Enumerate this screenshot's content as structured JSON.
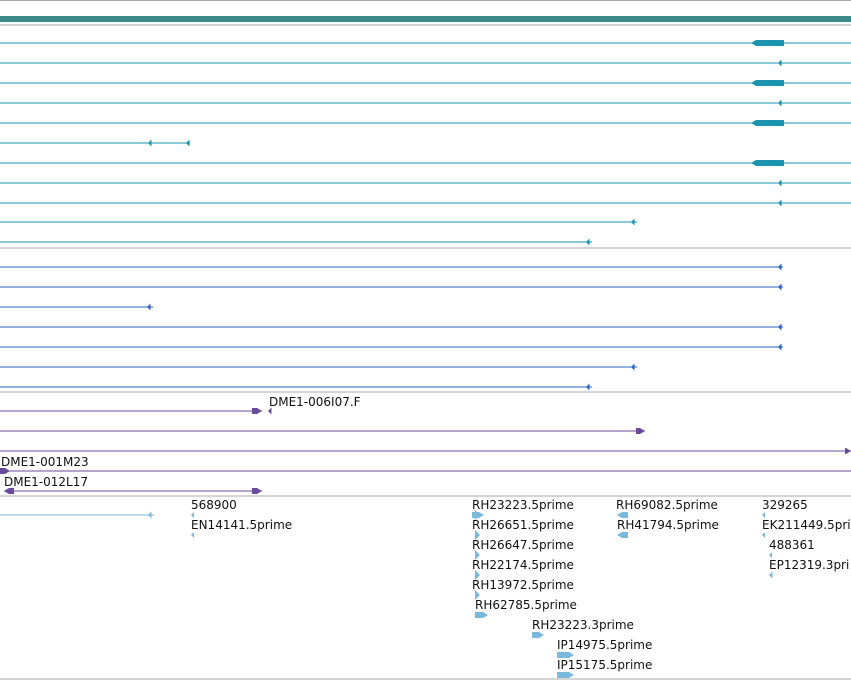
{
  "colors": {
    "band": "#3a8a8a",
    "teal": "#1a93b0",
    "blue": "#2a62c0",
    "purple": "#6a4a9c",
    "light": "#7ab8dc",
    "divider": "#aaaaaa"
  },
  "labels": {
    "bac_1": "DME1-006I07.F",
    "bac_2": "DME1-001M23",
    "bac_3": "DME1-012L17",
    "est_568900": "568900",
    "est_en14141": "EN14141.5prime",
    "est_rh23223_5": "RH23223.5prime",
    "est_rh26651": "RH26651.5prime",
    "est_rh26647": "RH26647.5prime",
    "est_rh22174": "RH22174.5prime",
    "est_rh13972": "RH13972.5prime",
    "est_rh62785": "RH62785.5prime",
    "est_rh23223_3": "RH23223.3prime",
    "est_ip14975": "IP14975.5prime",
    "est_ip15175": "IP15175.5prime",
    "est_rh69082": "RH69082.5prime",
    "est_rh41794": "RH41794.5prime",
    "est_329265": "329265",
    "est_ek211449": "EK211449.5pri",
    "est_488361": "488361",
    "est_ep12319": "EP12319.3pri"
  }
}
